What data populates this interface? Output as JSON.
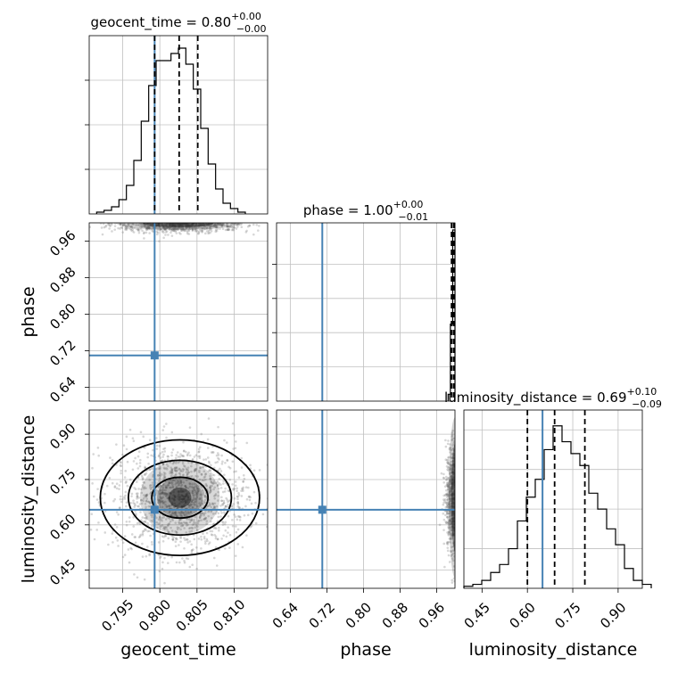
{
  "colors": {
    "truth": "#4682b4",
    "hist": "#000000",
    "grid": "#c0c0c0",
    "scatter": "#6e6e6e"
  },
  "chart_data": [
    {
      "type": "histogram",
      "panel": "geocent_time-marginal",
      "title": {
        "name": "geocent_time",
        "median": "0.80",
        "plus": "+0.00",
        "minus": "−0.00"
      },
      "xlim": [
        0.7905,
        0.8145
      ],
      "bin_width": 0.001,
      "bin_start": 0.7915,
      "counts": [
        1,
        2,
        4,
        8,
        16,
        30,
        52,
        72,
        86,
        86,
        90,
        93,
        84,
        70,
        48,
        28,
        14,
        6,
        3,
        1
      ],
      "truth": 0.7993,
      "quantiles": [
        0.7993,
        0.8026,
        0.8051
      ]
    },
    {
      "type": "histogram",
      "panel": "phase-marginal",
      "title": {
        "name": "phase",
        "median": "1.00",
        "plus": "+0.00",
        "minus": "−0.01"
      },
      "xlim": [
        0.61,
        1.0
      ],
      "ylim": [
        0,
        1
      ],
      "bin_edges": [
        0.985,
        0.99,
        0.995,
        1.0
      ],
      "counts": [
        0.04,
        0.45,
        1.0
      ],
      "truth": 0.71,
      "quantiles": [
        0.9925,
        0.997,
        0.999
      ]
    },
    {
      "type": "histogram",
      "panel": "luminosity_distance-marginal",
      "title": {
        "name": "luminosity_distance",
        "median": "0.69",
        "plus": "+0.10",
        "minus": "−0.09"
      },
      "xlim": [
        0.39,
        0.98
      ],
      "bin_start": 0.39,
      "bin_width": 0.0295,
      "counts": [
        1,
        2,
        4,
        8,
        12,
        20,
        34,
        46,
        55,
        70,
        82,
        74,
        68,
        62,
        48,
        40,
        30,
        22,
        10,
        4,
        2
      ],
      "truth": 0.65,
      "quantiles": [
        0.6,
        0.69,
        0.79
      ]
    },
    {
      "type": "scatter",
      "panel": "geocent_time-vs-phase",
      "xlim": [
        0.7905,
        0.8145
      ],
      "ylim": [
        0.61,
        1.0
      ],
      "truth": [
        0.7993,
        0.71
      ],
      "density": {
        "x_center": 0.8025,
        "x_sd": 0.0045,
        "y_center": 1.0,
        "y_sd": 0.01
      }
    },
    {
      "type": "scatter",
      "panel": "geocent_time-vs-luminosity_distance",
      "xlim": [
        0.7905,
        0.8145
      ],
      "ylim": [
        0.39,
        0.98
      ],
      "truth": [
        0.7993,
        0.65
      ],
      "density": {
        "x_center": 0.8027,
        "x_sd": 0.0045,
        "y_center": 0.69,
        "y_sd": 0.09
      }
    },
    {
      "type": "scatter",
      "panel": "phase-vs-luminosity_distance",
      "xlim": [
        0.61,
        1.0
      ],
      "ylim": [
        0.39,
        0.98
      ],
      "truth": [
        0.71,
        0.65
      ],
      "density": {
        "x_center": 1.0,
        "x_sd": 0.01,
        "y_center": 0.69,
        "y_sd": 0.09
      }
    }
  ],
  "axes": {
    "geocent_time": {
      "label": "geocent_time",
      "ticks": [
        0.795,
        0.8,
        0.805,
        0.81
      ],
      "tick_labels": [
        "0.795",
        "0.800",
        "0.805",
        "0.810"
      ]
    },
    "phase": {
      "label": "phase",
      "ticks": [
        0.64,
        0.72,
        0.8,
        0.88,
        0.96
      ],
      "tick_labels": [
        "0.64",
        "0.72",
        "0.80",
        "0.88",
        "0.96"
      ]
    },
    "luminosity_distance": {
      "label": "luminosity_distance",
      "ticks": [
        0.45,
        0.6,
        0.75,
        0.9
      ],
      "tick_labels": [
        "0.45",
        "0.60",
        "0.75",
        "0.90"
      ]
    }
  }
}
